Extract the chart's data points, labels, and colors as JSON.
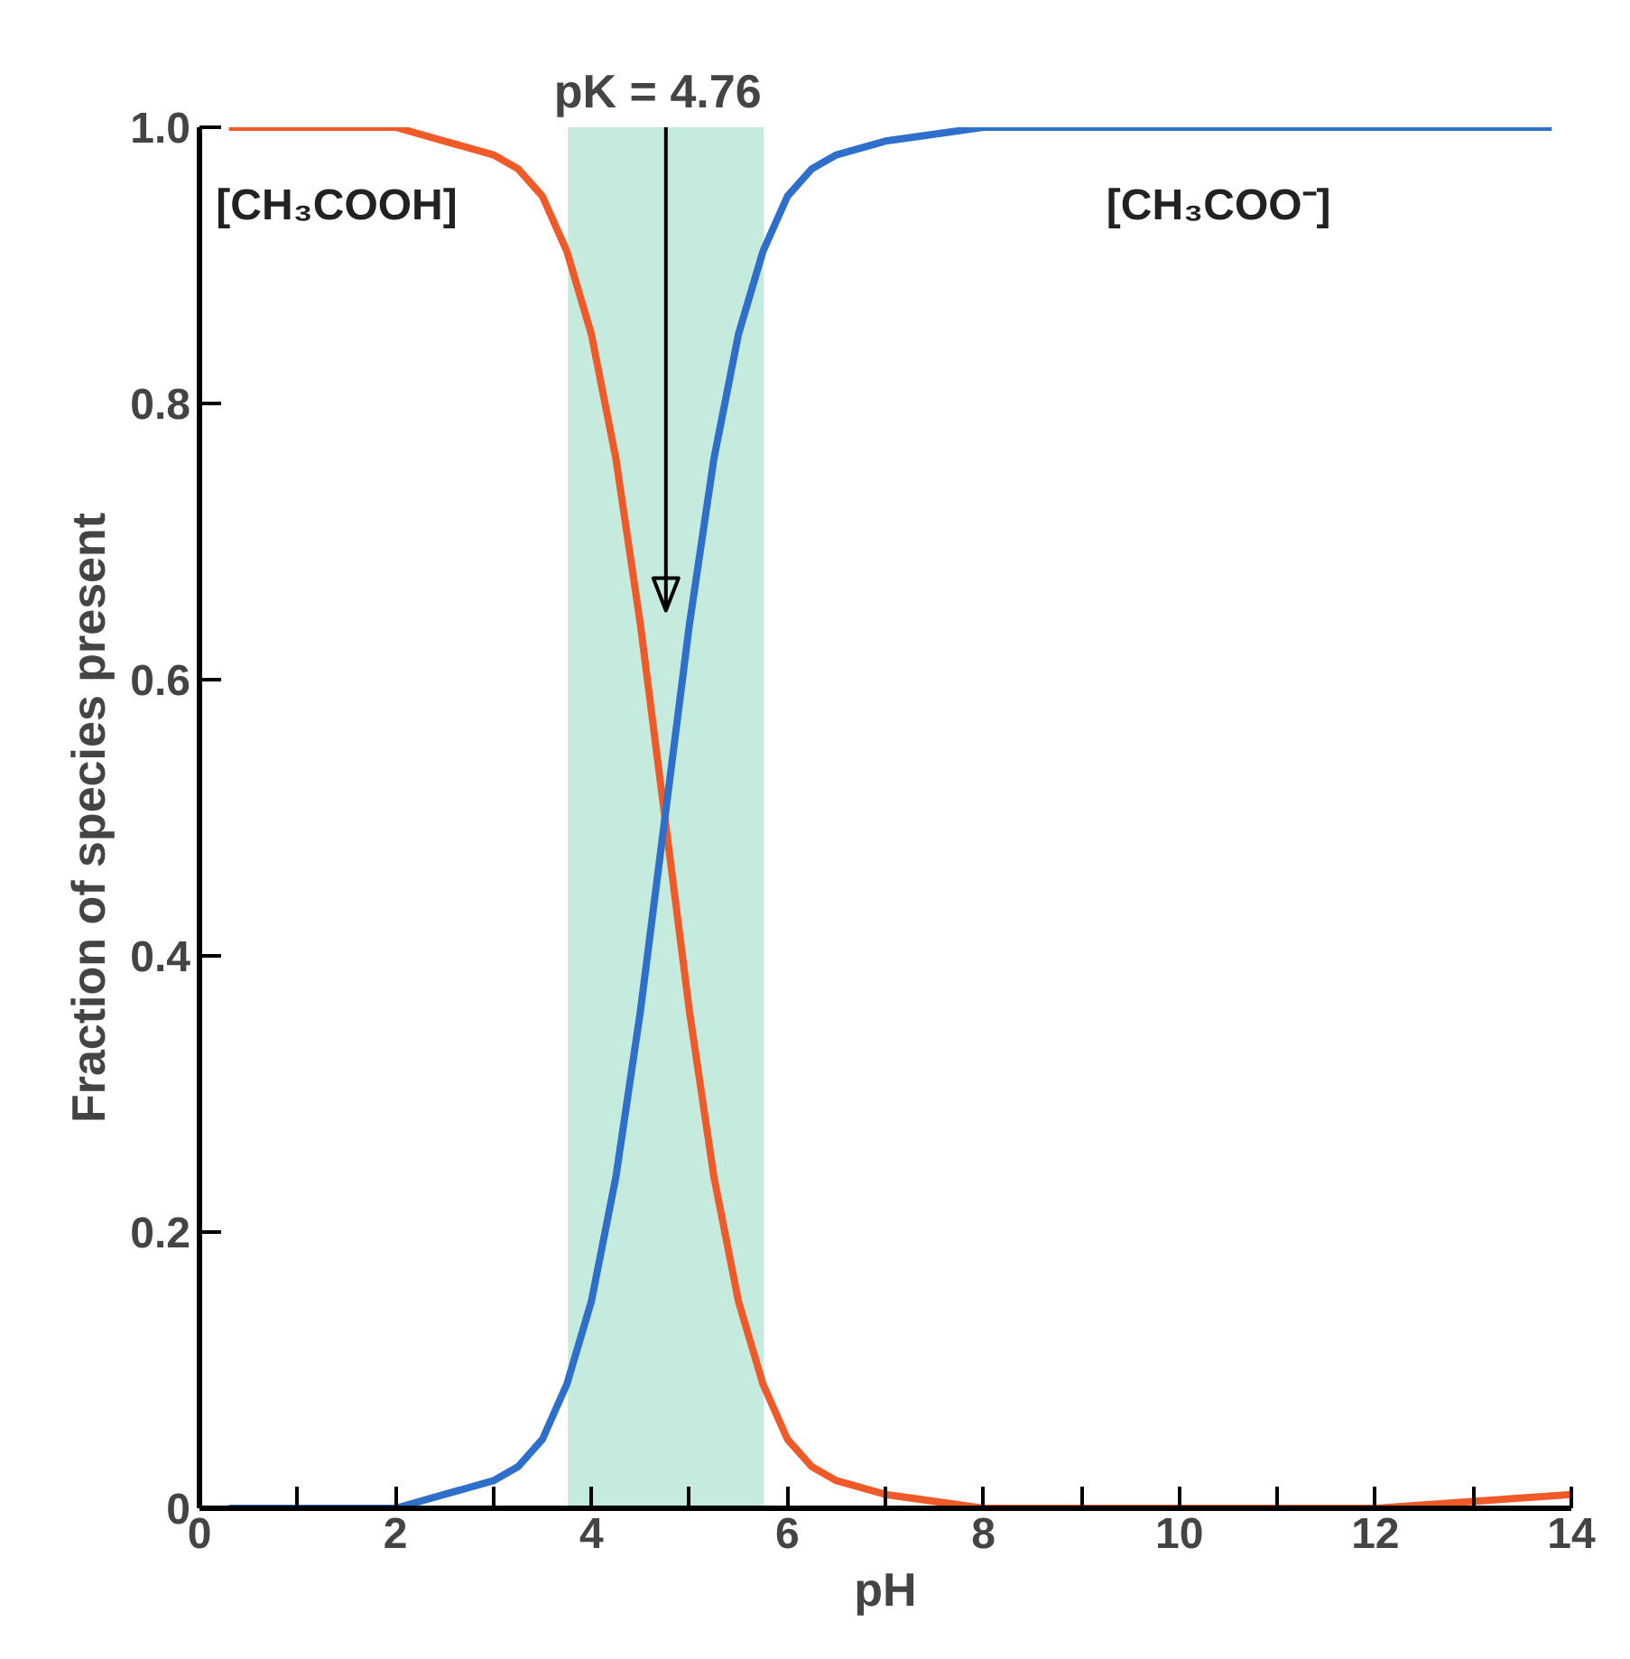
{
  "chart_data": {
    "type": "line",
    "xlabel": "pH",
    "ylabel": "Fraction of species present",
    "xlim": [
      0,
      14
    ],
    "ylim": [
      0,
      1.0
    ],
    "xticks": [
      0,
      {
        "value": 1,
        "label": null
      },
      2,
      {
        "value": 3,
        "label": null
      },
      4,
      {
        "value": 5,
        "label": null
      },
      6,
      {
        "value": 7,
        "label": null
      },
      8,
      {
        "value": 9,
        "label": null
      },
      10,
      {
        "value": 11,
        "label": null
      },
      12,
      {
        "value": 13,
        "label": null
      },
      14
    ],
    "yticks": [
      0,
      0.2,
      0.4,
      0.6,
      0.8,
      {
        "value": 1,
        "label": "1.0"
      }
    ],
    "grid": false,
    "marker": "none",
    "line_style": "solid",
    "series": [
      {
        "name": "[CH₃COOH]",
        "color": "#f05a28",
        "x": [
          0.3,
          1,
          2,
          2.5,
          3,
          3.25,
          3.5,
          3.75,
          4,
          4.25,
          4.5,
          4.75,
          5,
          5.25,
          5.5,
          5.75,
          6,
          6.25,
          6.5,
          7,
          8,
          10,
          12,
          14
        ],
        "values": [
          1,
          1,
          1,
          0.99,
          0.98,
          0.97,
          0.95,
          0.91,
          0.85,
          0.76,
          0.64,
          0.5,
          0.36,
          0.24,
          0.15,
          0.09,
          0.05,
          0.03,
          0.02,
          0.01,
          0,
          0,
          0,
          0.01
        ]
      },
      {
        "name": "[CH₃COO⁻]",
        "color": "#2e6fcc",
        "x": [
          0.3,
          1,
          2,
          2.5,
          3,
          3.25,
          3.5,
          3.75,
          4,
          4.25,
          4.5,
          4.75,
          5,
          5.25,
          5.5,
          5.75,
          6,
          6.25,
          6.5,
          7,
          8,
          10,
          12,
          13.8
        ],
        "values": [
          0,
          0,
          0,
          0.01,
          0.02,
          0.03,
          0.05,
          0.09,
          0.15,
          0.24,
          0.36,
          0.5,
          0.64,
          0.76,
          0.85,
          0.91,
          0.95,
          0.97,
          0.98,
          0.99,
          1,
          1,
          1,
          1
        ]
      }
    ],
    "bands": [
      {
        "axis": "x",
        "from": 3.76,
        "to": 5.76,
        "color": "#c5ebdf"
      }
    ],
    "ref_lines": [
      {
        "axis": "x",
        "value": 4.76,
        "label": "pK = 4.76",
        "line_style": "solid"
      }
    ]
  }
}
